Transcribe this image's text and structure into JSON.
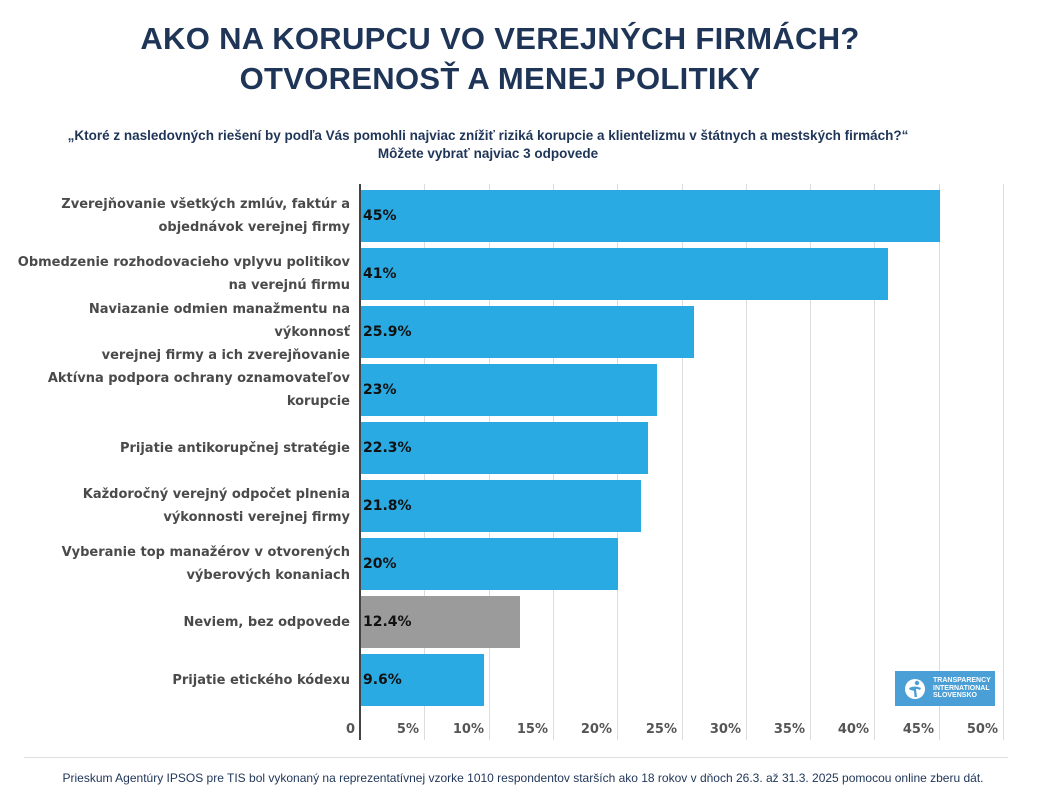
{
  "header": {
    "title_line1": "AKO NA KORUPCU VO VEREJNÝCH FIRMÁCH?",
    "title_line2": "OTVORENOSŤ A MENEJ POLITIKY",
    "question": "„Ktoré z nasledovných riešení by podľa Vás pomohli najviac znížiť riziká korupcie a klientelizmu v štátnych a mestských firmách?“",
    "instruction": "Môžete vybrať najviac 3 odpovede"
  },
  "chart_data": {
    "type": "bar",
    "orientation": "horizontal",
    "title": "AKO NA KORUPCU VO VEREJNÝCH FIRMÁCH? OTVORENOSŤ A MENEJ POLITIKY",
    "subtitle": "„Ktoré z nasledovných riešení by podľa Vás pomohli najviac znížiť riziká korupcie a klientelizmu v štátnych a mestských firmách?“ Môžete vybrať najviac 3 odpovede",
    "xlabel": "",
    "ylabel": "",
    "xlim": [
      0,
      50
    ],
    "grid": true,
    "ticks": [
      "0",
      "5%",
      "10%",
      "15%",
      "20%",
      "25%",
      "30%",
      "35%",
      "40%",
      "45%",
      "50%"
    ],
    "tick_values": [
      0,
      5,
      10,
      15,
      20,
      25,
      30,
      35,
      40,
      45,
      50
    ],
    "categories": [
      [
        "Zverejňovanie všetkých zmlúv, faktúr a",
        "objednávok verejnej firmy"
      ],
      [
        "Obmedzenie rozhodovacieho vplyvu politikov",
        "na verejnú firmu"
      ],
      [
        "Naviazanie odmien manažmentu na výkonnosť",
        "verejnej firmy a ich zverejňovanie"
      ],
      [
        "Aktívna podpora ochrany oznamovateľov",
        "korupcie"
      ],
      [
        "Prijatie antikorupčnej stratégie"
      ],
      [
        "Každoročný verejný odpočet plnenia",
        "výkonnosti verejnej firmy"
      ],
      [
        "Vyberanie top manažérov v otvorených",
        "výberových konaniach"
      ],
      [
        "Neviem, bez odpovede"
      ],
      [
        "Prijatie etického kódexu"
      ]
    ],
    "values": [
      45,
      41,
      25.9,
      23,
      22.3,
      21.8,
      20,
      12.4,
      9.6
    ],
    "value_labels": [
      "45%",
      "41%",
      "25.9%",
      "23%",
      "22.3%",
      "21.8%",
      "20%",
      "12.4%",
      "9.6%"
    ],
    "colors": [
      "#2aaae2",
      "#2aaae2",
      "#2aaae2",
      "#2aaae2",
      "#2aaae2",
      "#2aaae2",
      "#2aaae2",
      "#9b9b9b",
      "#2aaae2"
    ]
  },
  "logo": {
    "lines": [
      "TRANSPARENCY",
      "INTERNATIONAL",
      "SLOVENSKO"
    ],
    "color": "#4a9fd6"
  },
  "footer": {
    "text": "Prieskum Agentúry IPSOS pre TIS bol vykonaný na reprezentatívnej vzorke 1010 respondentov starších ako 18 rokov v dňoch 26.3. až 31.3. 2025 pomocou online zberu dát."
  }
}
